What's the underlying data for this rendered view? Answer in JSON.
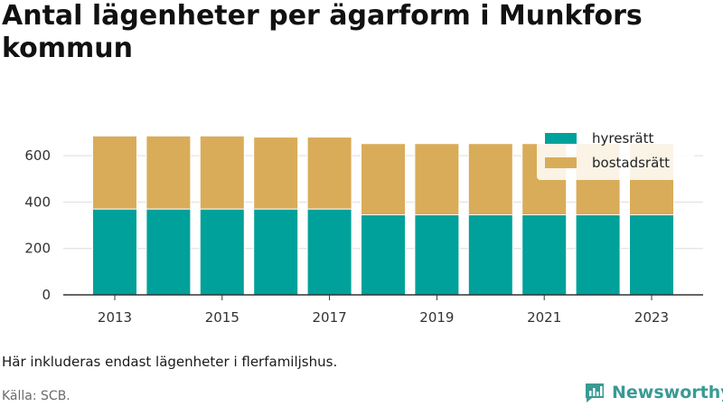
{
  "title": "Antal lägenheter per ägarform i Munkfors kommun",
  "footnote": "Här inkluderas endast lägenheter i flerfamiljshus.",
  "source": "Källa: SCB.",
  "brand": {
    "name": "Newsworthy",
    "icon": "newsworthy-logo-icon",
    "color": "#3a9a94"
  },
  "chart_data": {
    "type": "bar",
    "stacked": true,
    "title": "Antal lägenheter per ägarform i Munkfors kommun",
    "xlabel": "",
    "ylabel": "",
    "categories": [
      "2013",
      "2014",
      "2015",
      "2016",
      "2017",
      "2018",
      "2019",
      "2020",
      "2021",
      "2022",
      "2023"
    ],
    "x_tick_labels": [
      "2013",
      "2015",
      "2017",
      "2019",
      "2021",
      "2023"
    ],
    "y_ticks": [
      0,
      200,
      400,
      600
    ],
    "ylim": [
      0,
      700
    ],
    "grid": true,
    "legend_position": "top-right",
    "series": [
      {
        "name": "hyresrätt",
        "color": "#00a19a",
        "values": [
          370,
          370,
          370,
          370,
          370,
          345,
          345,
          345,
          345,
          345,
          345
        ]
      },
      {
        "name": "bostadsrätt",
        "color": "#d9ac59",
        "values": [
          315,
          315,
          315,
          310,
          310,
          307,
          307,
          307,
          307,
          307,
          307
        ]
      }
    ]
  }
}
